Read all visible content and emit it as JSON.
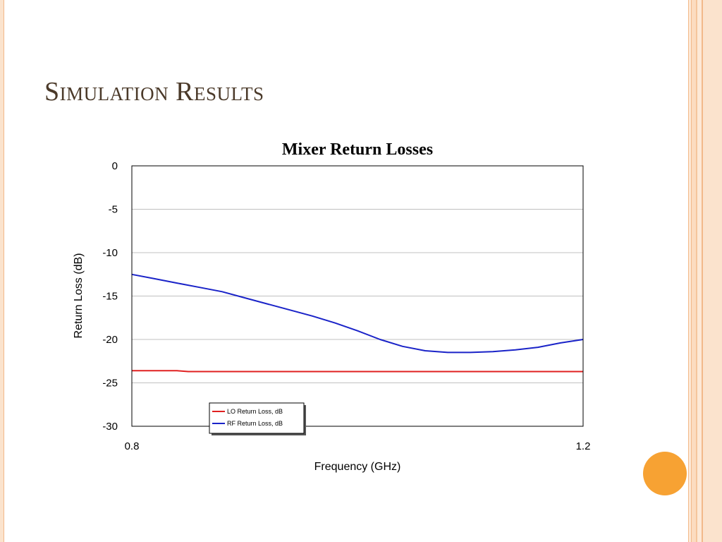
{
  "slide": {
    "title": "Simulation Results"
  },
  "colors": {
    "accent": "#f7a233",
    "title_text": "#4b3a2a",
    "lo_series": "#e02020",
    "rf_series": "#1a23c8"
  },
  "chart_data": {
    "type": "line",
    "title": "Mixer Return Losses",
    "xlabel": "Frequency (GHz)",
    "ylabel": "Return Loss (dB)",
    "xlim": [
      0.8,
      1.2
    ],
    "ylim": [
      -30,
      0
    ],
    "x_ticks": [
      "0.8",
      "1.2"
    ],
    "y_ticks": [
      "0",
      "-5",
      "-10",
      "-15",
      "-20",
      "-25",
      "-30"
    ],
    "grid": "horizontal",
    "legend_position": "bottom-left",
    "series": [
      {
        "name": "LO Return Loss, dB",
        "color": "#e02020",
        "x": [
          0.8,
          0.84,
          0.85,
          0.9,
          0.95,
          1.0,
          1.05,
          1.1,
          1.15,
          1.2
        ],
        "y": [
          -23.6,
          -23.6,
          -23.7,
          -23.7,
          -23.7,
          -23.7,
          -23.7,
          -23.7,
          -23.7,
          -23.7
        ]
      },
      {
        "name": "RF Return Loss, dB",
        "color": "#1a23c8",
        "x": [
          0.8,
          0.82,
          0.84,
          0.86,
          0.88,
          0.9,
          0.92,
          0.94,
          0.96,
          0.98,
          1.0,
          1.02,
          1.04,
          1.06,
          1.08,
          1.1,
          1.12,
          1.14,
          1.16,
          1.18,
          1.2
        ],
        "y": [
          -12.5,
          -13.0,
          -13.5,
          -14.0,
          -14.5,
          -15.2,
          -15.9,
          -16.6,
          -17.3,
          -18.1,
          -19.0,
          -20.0,
          -20.8,
          -21.3,
          -21.5,
          -21.5,
          -21.4,
          -21.2,
          -20.9,
          -20.4,
          -20.0
        ]
      }
    ]
  }
}
